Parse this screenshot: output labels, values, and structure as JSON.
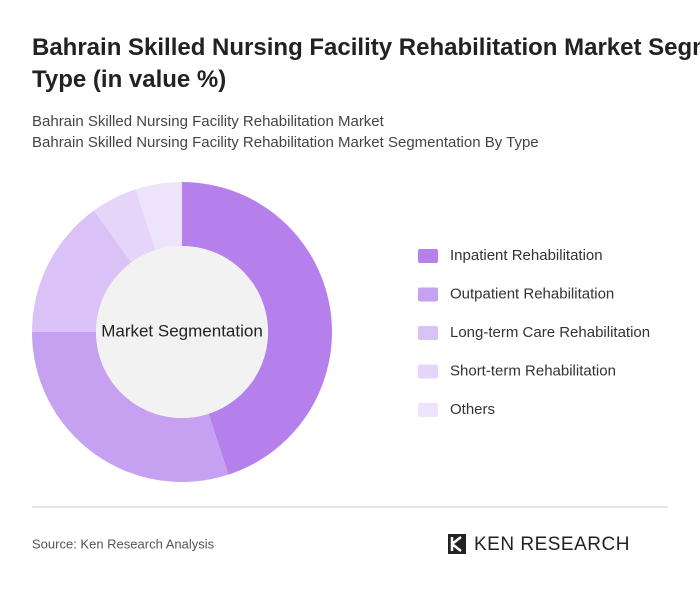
{
  "title": "Bahrain Skilled Nursing Facility Rehabilitation Market Segmentation By Type (in value %)",
  "subtitle_lines": [
    "Bahrain Skilled Nursing Facility Rehabilitation Market",
    "Bahrain Skilled Nursing Facility Rehabilitation Market Segmentation By Type"
  ],
  "chart_data": {
    "type": "donut",
    "center_label": "Market Segmentation",
    "categories": [
      "Inpatient Rehabilitation",
      "Outpatient Rehabilitation",
      "Long-term Care Rehabilitation",
      "Short-term Rehabilitation",
      "Others"
    ],
    "values": [
      45,
      30,
      15,
      5,
      5
    ],
    "colors": [
      "#b580ec",
      "#c6a0f1",
      "#dac2f6",
      "#e5d5f9",
      "#ede3fa"
    ]
  },
  "source": "Source: Ken Research Analysis",
  "logo": "KEN RESEARCH"
}
